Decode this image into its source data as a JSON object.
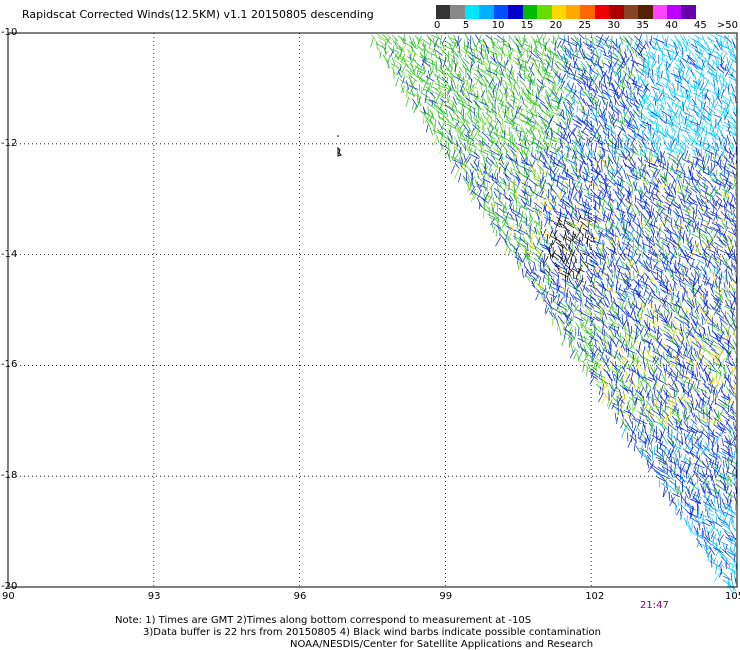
{
  "title": "Rapidscat Corrected Winds(12.5KM) v1.1 20150805 descending",
  "legend": {
    "colors": [
      "#333333",
      "#888888",
      "#00e5ff",
      "#00b0ff",
      "#0050ff",
      "#0000cc",
      "#00bb00",
      "#66dd00",
      "#ffd700",
      "#ffaa00",
      "#ff6600",
      "#ee0000",
      "#aa0000",
      "#884422",
      "#552200",
      "#ff44ff",
      "#bb00ff",
      "#6600aa"
    ],
    "ticks": [
      "0",
      "5",
      "10",
      "15",
      "20",
      "25",
      "30",
      "35",
      "40",
      "45",
      ">50 knots"
    ]
  },
  "axes": {
    "lat_labels": [
      "-10",
      "-12",
      "-14",
      "-16",
      "-18",
      "-20"
    ],
    "lon_labels": [
      "90",
      "93",
      "96",
      "99",
      "102",
      "105"
    ],
    "lat_range": [
      -20,
      -10
    ],
    "lon_range": [
      90,
      105
    ],
    "grid": "dotted"
  },
  "swath": {
    "edge_from": {
      "lon": 97.4,
      "lat": -10
    },
    "edge_to": {
      "lon": 104.8,
      "lat": -20
    },
    "colors": {
      "blue": "#0022dd",
      "light_blue": "#00aaff",
      "cyan": "#00ddff",
      "green": "#22bb22",
      "light_green": "#77dd22",
      "yellow": "#ffd700",
      "black": "#000000"
    }
  },
  "time_label": "21:47",
  "notes": [
    "Note: 1) Times are GMT 2)Times along bottom correspond to measurement at -10S",
    "3)Data buffer is 22 hrs from 20150805 4) Black wind barbs indicate possible contamination",
    "NOAA/NESDIS/Center for Satellite Applications and Research"
  ]
}
